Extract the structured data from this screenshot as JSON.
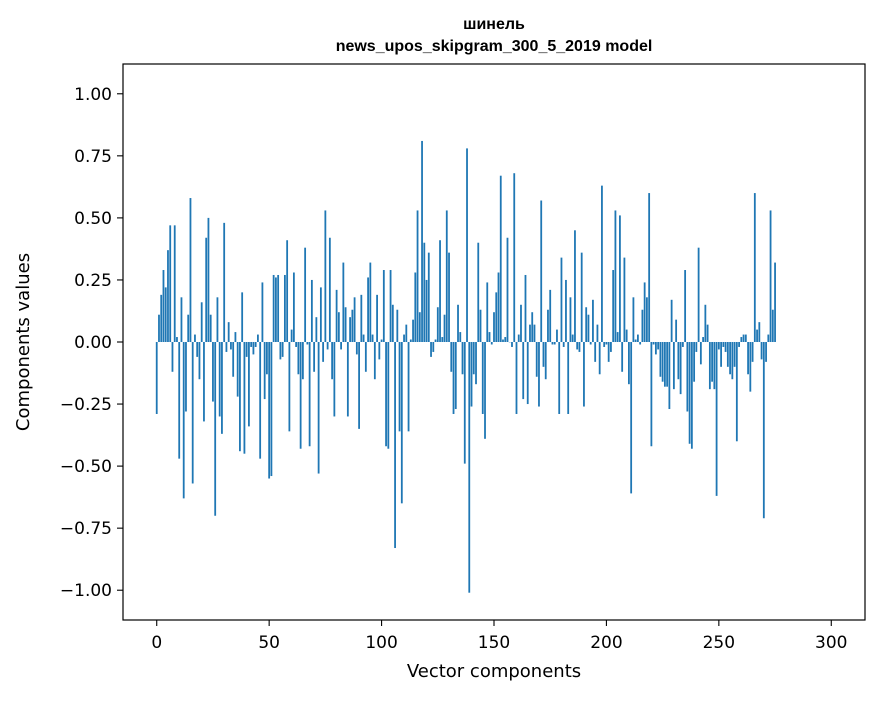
{
  "chart_data": {
    "type": "bar",
    "title_line1": "шинель",
    "title_line2": "news_upos_skipgram_300_5_2019 model",
    "xlabel": "Vector components",
    "ylabel": "Components values",
    "xlim": [
      -15,
      315
    ],
    "ylim": [
      -1.12,
      1.12
    ],
    "xticks": [
      0,
      50,
      100,
      150,
      200,
      250,
      300
    ],
    "xtick_labels": [
      "0",
      "50",
      "100",
      "150",
      "200",
      "250",
      "300"
    ],
    "yticks": [
      1.0,
      0.75,
      0.5,
      0.25,
      0.0,
      -0.25,
      -0.5,
      -0.75,
      -1.0
    ],
    "ytick_labels": [
      "1.00",
      "0.75",
      "0.50",
      "0.25",
      "0.00",
      "−0.25",
      "−0.50",
      "−0.75",
      "−1.00"
    ],
    "bar_color": "#1f77b4",
    "values": [
      -0.29,
      0.11,
      0.19,
      0.29,
      0.22,
      0.37,
      0.47,
      -0.12,
      0.47,
      0.02,
      -0.47,
      0.18,
      -0.63,
      -0.28,
      0.11,
      0.58,
      -0.57,
      0.03,
      -0.06,
      -0.15,
      0.16,
      -0.32,
      0.42,
      0.5,
      0.11,
      -0.24,
      -0.7,
      0.18,
      -0.3,
      -0.37,
      0.48,
      -0.04,
      0.08,
      -0.03,
      -0.14,
      0.04,
      -0.22,
      -0.44,
      0.2,
      -0.45,
      -0.06,
      -0.34,
      -0.02,
      -0.05,
      -0.02,
      0.03,
      -0.47,
      0.24,
      -0.23,
      -0.13,
      -0.55,
      -0.54,
      0.27,
      0.26,
      0.27,
      -0.07,
      -0.06,
      0.27,
      0.41,
      -0.36,
      0.05,
      0.28,
      -0.02,
      -0.13,
      -0.43,
      -0.15,
      0.38,
      -0.01,
      -0.42,
      0.25,
      -0.12,
      0.1,
      -0.53,
      0.22,
      -0.08,
      0.53,
      -0.03,
      0.42,
      -0.15,
      -0.3,
      0.21,
      0.12,
      -0.03,
      0.32,
      0.14,
      -0.3,
      0.1,
      0.13,
      0.18,
      -0.05,
      -0.35,
      0.19,
      0.03,
      -0.12,
      0.26,
      0.32,
      0.03,
      -0.15,
      0.19,
      -0.07,
      0.01,
      0.29,
      -0.42,
      -0.43,
      0.29,
      0.15,
      -0.83,
      0.13,
      -0.36,
      -0.65,
      0.03,
      0.07,
      -0.36,
      0.01,
      0.09,
      0.28,
      0.53,
      0.12,
      0.81,
      0.4,
      0.25,
      0.36,
      -0.06,
      -0.04,
      0.01,
      0.14,
      0.41,
      0.02,
      0.11,
      0.53,
      0.36,
      -0.12,
      -0.29,
      -0.27,
      0.15,
      0.04,
      -0.13,
      -0.49,
      0.78,
      -1.01,
      -0.26,
      -0.13,
      -0.17,
      0.4,
      0.13,
      -0.29,
      -0.39,
      0.24,
      0.04,
      -0.01,
      0.12,
      0.2,
      0.28,
      0.67,
      0.01,
      0.02,
      0.42,
      0.0,
      -0.02,
      0.68,
      -0.29,
      0.03,
      0.15,
      -0.23,
      0.27,
      -0.25,
      0.07,
      0.12,
      0.07,
      -0.14,
      -0.26,
      0.57,
      -0.1,
      -0.15,
      0.13,
      0.21,
      -0.01,
      -0.01,
      0.05,
      -0.29,
      0.34,
      -0.02,
      0.25,
      -0.29,
      0.18,
      0.03,
      0.45,
      -0.03,
      -0.04,
      0.36,
      -0.26,
      0.14,
      0.11,
      -0.01,
      0.17,
      -0.08,
      0.07,
      -0.13,
      0.63,
      -0.02,
      -0.01,
      -0.08,
      -0.04,
      0.29,
      0.53,
      0.04,
      0.51,
      -0.12,
      0.34,
      0.05,
      -0.17,
      -0.61,
      0.18,
      0.01,
      0.03,
      -0.01,
      0.13,
      0.24,
      0.18,
      0.6,
      -0.42,
      -0.01,
      -0.05,
      -0.03,
      -0.14,
      -0.16,
      -0.18,
      -0.18,
      -0.27,
      0.17,
      -0.19,
      0.09,
      -0.15,
      -0.21,
      -0.02,
      0.29,
      -0.28,
      -0.41,
      -0.43,
      -0.16,
      -0.04,
      0.38,
      -0.09,
      0.02,
      0.15,
      0.07,
      -0.19,
      -0.16,
      -0.19,
      -0.62,
      -0.03,
      -0.1,
      -0.02,
      -0.04,
      -0.1,
      -0.13,
      -0.15,
      -0.1,
      -0.4,
      -0.02,
      0.02,
      0.03,
      0.03,
      -0.13,
      -0.2,
      -0.08,
      0.6,
      0.05,
      0.08,
      -0.07,
      -0.71,
      -0.08,
      0.03,
      0.53,
      0.13,
      0.32
    ]
  }
}
